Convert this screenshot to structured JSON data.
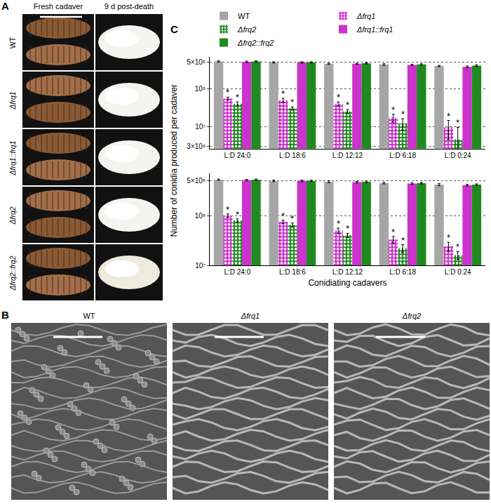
{
  "panel_a": {
    "label": "A",
    "columns": [
      "Fresh cadaver",
      "9 d post-death"
    ],
    "rows": [
      "WT",
      "Δfrq1",
      "Δfrq1::frq1",
      "Δfrq2",
      "Δfrq2::frq2"
    ]
  },
  "panel_b": {
    "label": "B",
    "images": [
      "WT",
      "Δfrq1",
      "Δfrq2"
    ]
  },
  "panel_c": {
    "label": "C",
    "ylabel": "Number of conidia produced per cadaver"
  },
  "chart_data": [
    {
      "type": "bar",
      "log": "y",
      "grid": true,
      "legend": "top",
      "categories": [
        "L:D 24:0",
        "L:D 18:6",
        "L:D 12:12",
        "L:D 6:18",
        "L:D 0:24"
      ],
      "ylim": [
        2600000,
        700000000
      ],
      "yticks": [
        {
          "value": 3000000,
          "label": "3×10⁶"
        },
        {
          "value": 10000000,
          "label": "10⁷"
        },
        {
          "value": 100000000,
          "label": "10⁸"
        },
        {
          "value": 500000000,
          "label": "5×10⁸"
        }
      ],
      "series": [
        {
          "name": "WT",
          "color": "#a6a6a6",
          "marker": "solid",
          "values": [
            530000000,
            500000000,
            460000000,
            440000000,
            400000000
          ],
          "errors": [
            20000000,
            20000000,
            15000000,
            20000000,
            15000000
          ]
        },
        {
          "name": "Δfrq1",
          "color": "#cc33cc",
          "marker": "dotted",
          "values": [
            55000000,
            50000000,
            40000000,
            17000000,
            9500000
          ],
          "errors": [
            5000000,
            6000000,
            5000000,
            4000000,
            5000000
          ],
          "annotations": [
            "*",
            "*",
            "*",
            "*",
            "*"
          ]
        },
        {
          "name": "Δfrq2",
          "color": "#1f8a1f",
          "marker": "dotted",
          "values": [
            40000000,
            30000000,
            25000000,
            12000000,
            4500000
          ],
          "errors": [
            5000000,
            3000000,
            3000000,
            4000000,
            5000000
          ],
          "annotations": [
            "*",
            "*",
            "*",
            "*",
            "*"
          ]
        },
        {
          "name": "Δfrq1::frq1",
          "color": "#cc33cc",
          "marker": "solid",
          "values": [
            520000000,
            500000000,
            460000000,
            430000000,
            380000000
          ],
          "errors": [
            20000000,
            20000000,
            15000000,
            15000000,
            20000000
          ]
        },
        {
          "name": "Δfrq2::frq2",
          "color": "#1f8a1f",
          "marker": "solid",
          "values": [
            530000000,
            500000000,
            470000000,
            440000000,
            410000000
          ],
          "errors": [
            20000000,
            20000000,
            15000000,
            20000000,
            20000000
          ]
        }
      ]
    },
    {
      "type": "bar",
      "log": "y",
      "grid": true,
      "categories": [
        "L:D 24:0",
        "L:D 18:6",
        "L:D 12:12",
        "L:D 6:18",
        "L:D 0:24"
      ],
      "xlabel": "Conidiating cadavers",
      "ylim": [
        10000000,
        700000000
      ],
      "yticks": [
        {
          "value": 10000000,
          "label": "10⁷"
        },
        {
          "value": 100000000,
          "label": "10⁸"
        },
        {
          "value": 500000000,
          "label": "5×10⁸"
        }
      ],
      "series": [
        {
          "name": "WT",
          "color": "#a6a6a6",
          "marker": "solid",
          "values": [
            530000000,
            500000000,
            480000000,
            450000000,
            420000000
          ],
          "errors": [
            15000000,
            20000000,
            20000000,
            15000000,
            20000000
          ]
        },
        {
          "name": "Δfrq1",
          "color": "#cc33cc",
          "marker": "dotted",
          "values": [
            100000000,
            75000000,
            50000000,
            33000000,
            24000000
          ],
          "errors": [
            8000000,
            6000000,
            6000000,
            5000000,
            5000000
          ],
          "annotations": [
            "*",
            "*",
            "*",
            "*",
            "*"
          ]
        },
        {
          "name": "Δfrq2",
          "color": "#1f8a1f",
          "marker": "dotted",
          "values": [
            80000000,
            65000000,
            40000000,
            22000000,
            16000000
          ],
          "errors": [
            6000000,
            6000000,
            4000000,
            4000000,
            3000000
          ],
          "annotations": [
            "*",
            "*",
            "*",
            "*",
            "*"
          ]
        },
        {
          "name": "Δfrq1::frq1",
          "color": "#cc33cc",
          "marker": "solid",
          "values": [
            520000000,
            500000000,
            470000000,
            440000000,
            410000000
          ],
          "errors": [
            15000000,
            20000000,
            15000000,
            15000000,
            15000000
          ]
        },
        {
          "name": "Δfrq2::frq2",
          "color": "#1f8a1f",
          "marker": "solid",
          "values": [
            530000000,
            500000000,
            480000000,
            450000000,
            420000000
          ],
          "errors": [
            15000000,
            15000000,
            15000000,
            15000000,
            15000000
          ]
        }
      ]
    }
  ]
}
